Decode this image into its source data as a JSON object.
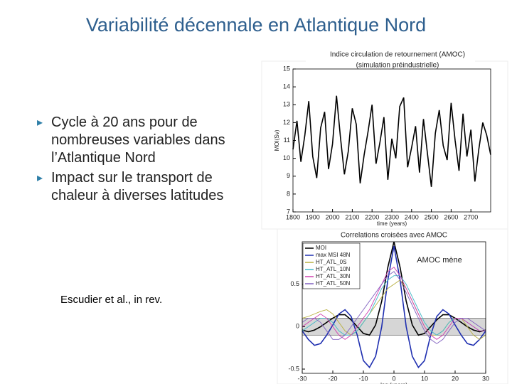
{
  "title": "Variabilité décennale en Atlantique Nord",
  "bullets": [
    "Cycle à 20 ans pour de nombreuses variables dans l’Atlantique Nord",
    "Impact sur le transport de chaleur à diverses latitudes"
  ],
  "citation": "Escudier et al., in rev.",
  "chart_data": [
    {
      "type": "line",
      "title": "Indice circulation de retournement (AMOC)",
      "subtitle": "(simulation préindustrielle)",
      "x_label": "time (years)",
      "y_label": "MOI(Sv)",
      "x": [
        1800,
        1820,
        1840,
        1860,
        1880,
        1900,
        1920,
        1940,
        1960,
        1980,
        2000,
        2020,
        2040,
        2060,
        2080,
        2100,
        2120,
        2140,
        2160,
        2180,
        2200,
        2220,
        2240,
        2260,
        2280,
        2300,
        2320,
        2340,
        2360,
        2380,
        2400,
        2420,
        2440,
        2460,
        2480,
        2500,
        2520,
        2540,
        2560,
        2580,
        2600,
        2620,
        2640,
        2660,
        2680,
        2700,
        2720,
        2740,
        2760,
        2780,
        2800
      ],
      "series": [
        {
          "color": "#000000",
          "values": [
            10.5,
            12.1,
            9.8,
            11.3,
            13.2,
            10.1,
            8.9,
            11.7,
            12.6,
            9.4,
            10.8,
            13.5,
            11.2,
            9.1,
            10.4,
            12.8,
            11.9,
            8.6,
            10.2,
            11.5,
            13.0,
            9.7,
            10.9,
            12.3,
            8.8,
            11.1,
            10.0,
            12.9,
            13.4,
            9.5,
            10.6,
            11.8,
            9.2,
            12.2,
            10.3,
            8.4,
            11.4,
            12.7,
            10.7,
            9.9,
            13.1,
            11.0,
            9.3,
            12.5,
            10.1,
            11.6,
            8.7,
            10.5,
            12.0,
            11.3,
            10.2
          ]
        }
      ],
      "xlim": [
        1800,
        2800
      ],
      "ylim": [
        7,
        15
      ],
      "xticks": [
        1800,
        1900,
        2000,
        2100,
        2200,
        2300,
        2400,
        2500,
        2600,
        2700
      ],
      "yticks": [
        7,
        8,
        9,
        10,
        11,
        12,
        13,
        14,
        15
      ]
    },
    {
      "type": "line",
      "title": "Correlations croisées avec AMOC",
      "annotation": "AMOC mène",
      "x_label": "lag (years)",
      "x": [
        -30,
        -28,
        -26,
        -24,
        -22,
        -20,
        -18,
        -16,
        -14,
        -12,
        -10,
        -8,
        -6,
        -4,
        -2,
        0,
        2,
        4,
        6,
        8,
        10,
        12,
        14,
        16,
        18,
        20,
        22,
        24,
        26,
        28,
        30
      ],
      "shaded_range": [
        -0.1,
        0.1
      ],
      "series": [
        {
          "name": "MOI",
          "color": "#000000",
          "values": [
            -0.04,
            -0.06,
            -0.04,
            0.0,
            0.05,
            0.1,
            0.14,
            0.14,
            0.08,
            0.0,
            -0.08,
            -0.1,
            0.02,
            0.3,
            0.7,
            1,
            0.7,
            0.3,
            0.02,
            -0.1,
            -0.08,
            0.0,
            0.08,
            0.14,
            0.14,
            0.1,
            0.05,
            0.0,
            -0.04,
            -0.06,
            -0.04
          ]
        },
        {
          "name": "max MSI 48N",
          "color": "#1f2fb0",
          "values": [
            -0.05,
            -0.15,
            -0.22,
            -0.2,
            -0.1,
            0.02,
            0.15,
            0.2,
            0.12,
            -0.1,
            -0.4,
            -0.48,
            -0.35,
            0.0,
            0.55,
            0.95,
            0.55,
            0.0,
            -0.35,
            -0.48,
            -0.4,
            -0.1,
            0.12,
            0.2,
            0.15,
            0.02,
            -0.1,
            -0.2,
            -0.22,
            -0.15,
            -0.05
          ]
        },
        {
          "name": "HT_ATL_0S",
          "color": "#b8b040",
          "values": [
            0.1,
            0.12,
            0.15,
            0.18,
            0.2,
            0.15,
            0.05,
            -0.05,
            -0.1,
            -0.05,
            0.05,
            0.15,
            0.25,
            0.35,
            0.45,
            0.5,
            0.55,
            0.45,
            0.3,
            0.15,
            0.0,
            -0.1,
            -0.1,
            -0.05,
            0.05,
            0.1,
            0.1,
            0.0,
            -0.1,
            -0.15,
            -0.1
          ]
        },
        {
          "name": "HT_ATL_10N",
          "color": "#40b8c8",
          "values": [
            -0.05,
            0,
            0.05,
            0.1,
            0.1,
            0.05,
            -0.05,
            -0.1,
            -0.1,
            -0.05,
            0.05,
            0.15,
            0.3,
            0.45,
            0.55,
            0.6,
            0.6,
            0.5,
            0.35,
            0.2,
            0.05,
            -0.05,
            -0.1,
            -0.05,
            0.05,
            0.1,
            0.1,
            0.05,
            0,
            -0.05,
            -0.05
          ]
        },
        {
          "name": "HT_ATL_30N",
          "color": "#d040b0",
          "values": [
            0,
            0.05,
            0.1,
            0.15,
            0.1,
            0,
            -0.1,
            -0.15,
            -0.1,
            0,
            0.1,
            0.2,
            0.35,
            0.5,
            0.65,
            0.7,
            0.6,
            0.45,
            0.3,
            0.15,
            0.0,
            -0.1,
            -0.15,
            -0.1,
            0,
            0.1,
            0.1,
            0.05,
            0,
            -0.05,
            -0.05
          ]
        },
        {
          "name": "HT_ATL_50N",
          "color": "#8060c0",
          "values": [
            0.05,
            0.1,
            0.1,
            0.05,
            -0.05,
            -0.15,
            -0.15,
            -0.1,
            0,
            0.1,
            0.2,
            0.3,
            0.4,
            0.5,
            0.6,
            0.65,
            0.55,
            0.4,
            0.25,
            0.1,
            -0.05,
            -0.15,
            -0.2,
            -0.15,
            -0.05,
            0.05,
            0.1,
            0.1,
            0.05,
            0,
            -0.05
          ]
        }
      ],
      "xlim": [
        -30,
        30
      ],
      "ylim": [
        -0.55,
        1.0
      ],
      "xticks": [
        -30,
        -20,
        -10,
        0,
        10,
        20,
        30
      ],
      "yticks": [
        -0.5,
        0,
        0.5
      ]
    }
  ]
}
